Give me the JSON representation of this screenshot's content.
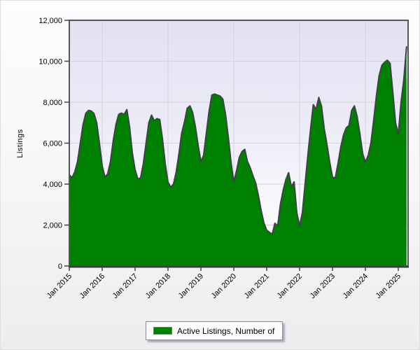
{
  "chart_data": {
    "type": "area",
    "title": "",
    "ylabel": "Listings",
    "xlabel": "",
    "ylim": [
      0,
      12000
    ],
    "grid": "on",
    "y_axis": {
      "title": "Listings",
      "ticks": [
        0,
        2000,
        4000,
        6000,
        8000,
        10000,
        12000
      ],
      "tick_labels": [
        "0",
        "2,000",
        "4,000",
        "6,000",
        "8,000",
        "10,000",
        "12,000"
      ]
    },
    "x_axis": {
      "tick_labels": [
        "Jan 2015",
        "Jan 2016",
        "Jan 2017",
        "Jan 2018",
        "Jan 2019",
        "Jan 2020",
        "Jan 2021",
        "Jan 2022",
        "Jan 2023",
        "Jan 2024",
        "Jan 2025"
      ],
      "v_gridline_ticks": [
        "Jan 2016",
        "Jan 2018",
        "Jan 2020",
        "Jan 2022",
        "Jan 2024"
      ]
    },
    "legend": {
      "position": "bottom-center",
      "entries": [
        {
          "label": "Active Listings, Number of",
          "color": "#008000"
        }
      ]
    },
    "series": [
      {
        "name": "Active Listings, Number of",
        "fill_color": "#008000",
        "line_color": "#40404a",
        "x": [
          "2015-01",
          "2015-02",
          "2015-03",
          "2015-04",
          "2015-05",
          "2015-06",
          "2015-07",
          "2015-08",
          "2015-09",
          "2015-10",
          "2015-11",
          "2015-12",
          "2016-01",
          "2016-02",
          "2016-03",
          "2016-04",
          "2016-05",
          "2016-06",
          "2016-07",
          "2016-08",
          "2016-09",
          "2016-10",
          "2016-11",
          "2016-12",
          "2017-01",
          "2017-02",
          "2017-03",
          "2017-04",
          "2017-05",
          "2017-06",
          "2017-07",
          "2017-08",
          "2017-09",
          "2017-10",
          "2017-11",
          "2017-12",
          "2018-01",
          "2018-02",
          "2018-03",
          "2018-04",
          "2018-05",
          "2018-06",
          "2018-07",
          "2018-08",
          "2018-09",
          "2018-10",
          "2018-11",
          "2018-12",
          "2019-01",
          "2019-02",
          "2019-03",
          "2019-04",
          "2019-05",
          "2019-06",
          "2019-07",
          "2019-08",
          "2019-09",
          "2019-10",
          "2019-11",
          "2019-12",
          "2020-01",
          "2020-02",
          "2020-03",
          "2020-04",
          "2020-05",
          "2020-06",
          "2020-07",
          "2020-08",
          "2020-09",
          "2020-10",
          "2020-11",
          "2020-12",
          "2021-01",
          "2021-02",
          "2021-03",
          "2021-04",
          "2021-05",
          "2021-06",
          "2021-07",
          "2021-08",
          "2021-09",
          "2021-10",
          "2021-11",
          "2021-12",
          "2022-01",
          "2022-02",
          "2022-03",
          "2022-04",
          "2022-05",
          "2022-06",
          "2022-07",
          "2022-08",
          "2022-09",
          "2022-10",
          "2022-11",
          "2022-12",
          "2023-01",
          "2023-02",
          "2023-03",
          "2023-04",
          "2023-05",
          "2023-06",
          "2023-07",
          "2023-08",
          "2023-09",
          "2023-10",
          "2023-11",
          "2023-12",
          "2024-01",
          "2024-02",
          "2024-03",
          "2024-04",
          "2024-05",
          "2024-06",
          "2024-07",
          "2024-08",
          "2024-09",
          "2024-10",
          "2024-11",
          "2024-12",
          "2025-01",
          "2025-02",
          "2025-03",
          "2025-04"
        ],
        "values": [
          4450,
          4320,
          4600,
          5100,
          6000,
          6900,
          7450,
          7600,
          7570,
          7450,
          7000,
          6000,
          4900,
          4350,
          4500,
          5100,
          6100,
          6900,
          7400,
          7470,
          7400,
          7640,
          6790,
          5520,
          4700,
          4250,
          4300,
          5000,
          6000,
          7000,
          7370,
          7100,
          7200,
          7150,
          6200,
          5000,
          4100,
          3850,
          4000,
          4600,
          5500,
          6500,
          7030,
          7700,
          7820,
          7500,
          6800,
          5900,
          5100,
          5420,
          6500,
          7580,
          8350,
          8400,
          8350,
          8300,
          8150,
          7400,
          6300,
          5070,
          4100,
          4660,
          5310,
          5590,
          5700,
          5100,
          4800,
          4400,
          4050,
          3430,
          2700,
          2100,
          1750,
          1650,
          1550,
          2090,
          1950,
          3020,
          3700,
          4220,
          4560,
          3870,
          4110,
          2600,
          1950,
          2600,
          4000,
          5400,
          6700,
          7880,
          7650,
          8230,
          7800,
          6700,
          5930,
          5070,
          4350,
          4300,
          5000,
          5800,
          6400,
          6750,
          6860,
          7600,
          7820,
          7300,
          6450,
          5500,
          5070,
          5400,
          6000,
          7100,
          8300,
          9300,
          9800,
          9950,
          10050,
          9900,
          8500,
          7000,
          6450,
          8000,
          9100,
          10700
        ]
      }
    ],
    "colors": {
      "area_fill": "#008000",
      "area_outline": "#40404a",
      "gridline": "#d3d3db",
      "plot_frame": "#55555e",
      "axis_text": "#000000",
      "plot_bg_top": "#e1e1f2",
      "plot_bg_bottom": "#ffffff"
    }
  }
}
